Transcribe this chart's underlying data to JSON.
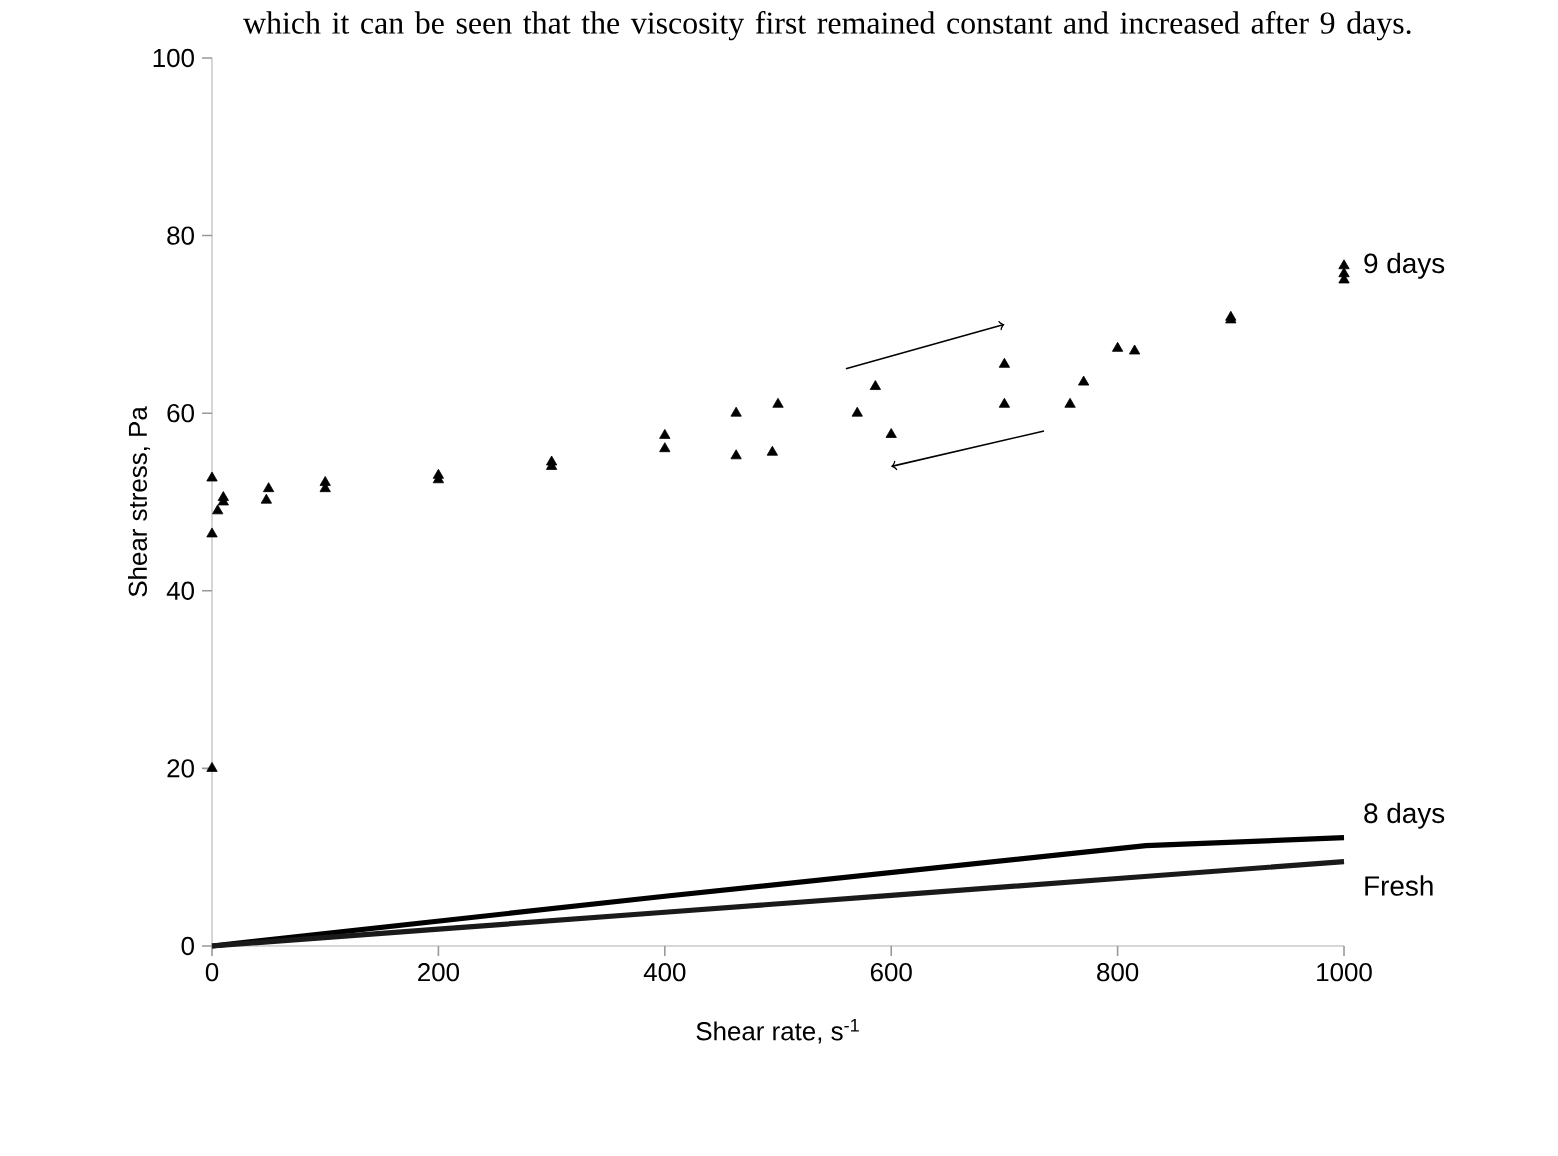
{
  "chart_data": {
    "type": "scatter",
    "xlabel": "Shear rate, s$^{-1}$",
    "ylabel": "Shear stress, Pa",
    "xlim": [
      0,
      1000
    ],
    "ylim": [
      0,
      100
    ],
    "xticks": [
      0,
      200,
      400,
      600,
      800,
      1000
    ],
    "yticks": [
      0,
      20,
      40,
      60,
      80,
      100
    ],
    "legend": false,
    "grid": false,
    "annotations": [
      "which it can be seen that the viscosity first remained constant and increased after 9 days."
    ],
    "series": [
      {
        "name": "9 days",
        "marker": "triangle",
        "color": "#000000",
        "x": [
          0,
          5,
          10,
          50,
          100,
          200,
          300,
          400,
          463,
          500,
          586,
          700,
          800,
          900,
          1000,
          1000,
          1000,
          900,
          815,
          770,
          758,
          700,
          600,
          570,
          495,
          463,
          400,
          300,
          200,
          100,
          48,
          10,
          0,
          0
        ],
        "values": [
          46.4,
          49,
          50.5,
          51.5,
          52.2,
          53,
          54.5,
          57.5,
          60,
          61,
          63,
          65.5,
          67.3,
          70.8,
          75.7,
          76.6,
          75,
          70.5,
          67,
          63.5,
          61,
          61,
          57.6,
          60,
          55.6,
          55.2,
          56,
          54,
          52.5,
          51.5,
          50.2,
          50,
          52.7,
          20
        ]
      },
      {
        "name": "8 days",
        "type": "line",
        "marker": "none",
        "color": "#000000",
        "x": [
          0,
          400,
          825,
          1000
        ],
        "values": [
          0,
          5.6,
          11.3,
          12.2
        ]
      },
      {
        "name": "Fresh",
        "type": "line",
        "marker": "none",
        "color": "#1a1a1a",
        "x": [
          0,
          200,
          400,
          600,
          800,
          1000
        ],
        "values": [
          0,
          1.9,
          3.8,
          5.7,
          7.6,
          9.5
        ]
      }
    ]
  }
}
